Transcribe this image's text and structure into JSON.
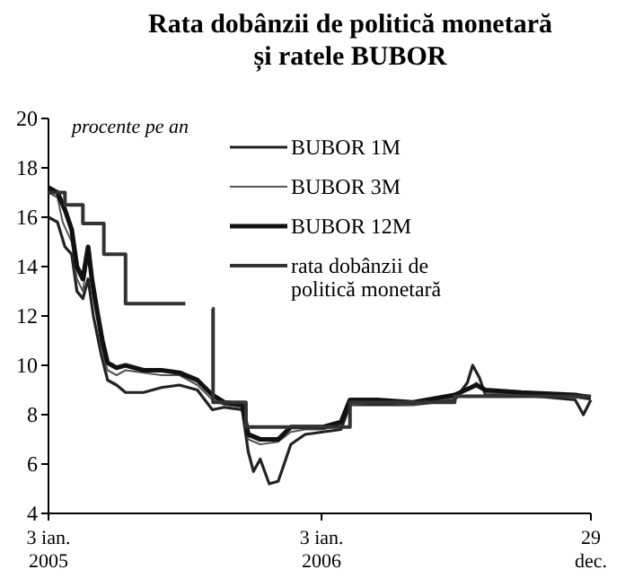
{
  "chart_data": {
    "type": "line",
    "title": "Rata dobânzii de politică monetară\nși ratele BUBOR",
    "ylabel": "procente pe an",
    "xlim": [
      "2005-01-03",
      "2006-12-29"
    ],
    "xticks": [
      {
        "value": "2005-01-03",
        "label": "3 ian.\n2005"
      },
      {
        "value": "2006-01-03",
        "label": "3 ian.\n2006"
      },
      {
        "value": "2006-12-29",
        "label": "29\ndec."
      }
    ],
    "ylim": [
      4,
      20
    ],
    "yticks": [
      4,
      6,
      8,
      10,
      12,
      14,
      16,
      18,
      20
    ],
    "grid": false,
    "legend": "top right",
    "marker": "none",
    "line_style": "solid",
    "series": [
      {
        "name": "BUBOR 1M",
        "color": "#222222",
        "x": [
          "2005-01-03",
          "2005-01-15",
          "2005-01-25",
          "2005-02-03",
          "2005-02-10",
          "2005-02-18",
          "2005-02-25",
          "2005-03-04",
          "2005-03-14",
          "2005-03-23",
          "2005-04-04",
          "2005-04-16",
          "2005-05-10",
          "2005-06-03",
          "2005-06-27",
          "2005-07-21",
          "2005-08-10",
          "2005-08-26",
          "2005-09-19",
          "2005-09-27",
          "2005-10-04",
          "2005-10-13",
          "2005-10-25",
          "2005-11-06",
          "2005-11-14",
          "2005-11-23",
          "2005-12-12",
          "2006-01-05",
          "2006-01-29",
          "2006-02-10",
          "2006-03-18",
          "2006-05-05",
          "2006-06-30",
          "2006-07-17",
          "2006-07-24",
          "2006-08-02",
          "2006-08-10",
          "2006-09-27",
          "2006-12-08",
          "2006-12-19",
          "2006-12-29"
        ],
        "values": [
          16.0,
          15.8,
          14.8,
          14.5,
          13.0,
          12.7,
          13.5,
          12.0,
          10.5,
          9.4,
          9.2,
          8.9,
          8.9,
          9.1,
          9.2,
          9.0,
          8.2,
          8.3,
          8.2,
          6.5,
          5.7,
          6.2,
          5.2,
          5.3,
          6.0,
          6.8,
          7.2,
          7.3,
          7.4,
          8.4,
          8.4,
          8.4,
          8.6,
          9.3,
          10.0,
          9.5,
          8.8,
          8.8,
          8.6,
          8.0,
          8.6
        ]
      },
      {
        "name": "BUBOR 3M",
        "color": "#555555",
        "x": [
          "2005-01-03",
          "2005-01-15",
          "2005-01-22",
          "2005-02-03",
          "2005-02-10",
          "2005-02-18",
          "2005-02-25",
          "2005-03-02",
          "2005-03-09",
          "2005-03-16",
          "2005-03-23",
          "2005-04-04",
          "2005-04-16",
          "2005-05-10",
          "2005-06-03",
          "2005-06-27",
          "2005-07-21",
          "2005-08-10",
          "2005-08-26",
          "2005-09-19",
          "2005-09-27",
          "2005-10-13",
          "2005-11-06",
          "2005-11-23",
          "2005-12-12",
          "2006-01-05",
          "2006-01-29",
          "2006-02-10",
          "2006-03-18",
          "2006-05-05",
          "2006-06-30",
          "2006-07-29",
          "2006-08-10",
          "2006-09-27",
          "2006-12-08",
          "2006-12-29"
        ],
        "values": [
          17.0,
          16.8,
          15.8,
          15.0,
          13.5,
          13.0,
          14.5,
          13.2,
          12.0,
          10.5,
          9.8,
          9.6,
          9.8,
          9.7,
          9.6,
          9.6,
          9.2,
          8.6,
          8.4,
          8.3,
          7.0,
          6.8,
          6.9,
          7.3,
          7.4,
          7.4,
          7.6,
          8.4,
          8.5,
          8.4,
          8.7,
          9.3,
          8.9,
          8.8,
          8.7,
          8.6
        ]
      },
      {
        "name": "BUBOR 12M",
        "color": "#111111",
        "x": [
          "2005-01-03",
          "2005-01-15",
          "2005-01-25",
          "2005-02-03",
          "2005-02-10",
          "2005-02-18",
          "2005-02-25",
          "2005-03-02",
          "2005-03-09",
          "2005-03-16",
          "2005-03-23",
          "2005-04-04",
          "2005-04-16",
          "2005-05-10",
          "2005-06-03",
          "2005-06-27",
          "2005-07-21",
          "2005-08-10",
          "2005-08-26",
          "2005-09-19",
          "2005-09-27",
          "2005-10-13",
          "2005-11-06",
          "2005-11-23",
          "2005-12-12",
          "2006-01-05",
          "2006-01-29",
          "2006-02-10",
          "2006-03-18",
          "2006-05-05",
          "2006-06-30",
          "2006-07-29",
          "2006-08-10",
          "2006-09-27",
          "2006-12-08",
          "2006-12-29"
        ],
        "values": [
          17.2,
          17.0,
          16.3,
          15.5,
          14.0,
          13.5,
          14.8,
          13.5,
          12.2,
          11.0,
          10.1,
          9.9,
          10.0,
          9.8,
          9.8,
          9.7,
          9.4,
          8.8,
          8.5,
          8.4,
          7.2,
          7.0,
          7.0,
          7.5,
          7.5,
          7.5,
          7.7,
          8.6,
          8.6,
          8.5,
          8.8,
          9.2,
          9.0,
          8.9,
          8.8,
          8.7
        ]
      },
      {
        "name": "rata dobânzii de politică monetară",
        "color": "#333333",
        "type": "step",
        "x": [
          "2005-01-03",
          "2005-01-25",
          "2005-02-18",
          "2005-03-18",
          "2005-04-16",
          "2005-07-05",
          "2005-07-06",
          "2005-08-10",
          "2005-08-11",
          "2005-09-24",
          "2006-02-10",
          "2006-06-30",
          "2006-12-29"
        ],
        "values": [
          17,
          16.5,
          15.75,
          14.5,
          12.5,
          12.5,
          null,
          12.3,
          8.5,
          7.5,
          8.5,
          8.75,
          8.75
        ]
      }
    ]
  }
}
